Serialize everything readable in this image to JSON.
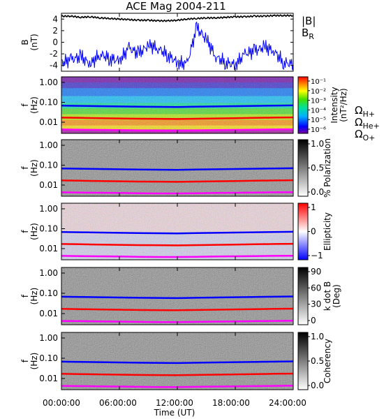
{
  "title": "ACE Mag 2004-211",
  "x_axis": {
    "label": "Time (UT)",
    "ticks": [
      "00:00:00",
      "06:00:00",
      "12:00:00",
      "18:00:00",
      "24:00:00"
    ],
    "range_hours": [
      0,
      24
    ]
  },
  "colors": {
    "btot": "#000000",
    "br": "#0000ff",
    "h_plus": "#0000ff",
    "he_plus": "#ff0000",
    "o_plus": "#ff00ff"
  },
  "chart_data": [
    {
      "type": "line",
      "ylabel": "B\n(nT)",
      "yticks": [
        "4",
        "2",
        "0",
        "-2",
        "-4"
      ],
      "ylim": [
        -5,
        5
      ],
      "x_hours": [
        0,
        1,
        2,
        3,
        4,
        5,
        6,
        7,
        8,
        9,
        10,
        11,
        12,
        13,
        14,
        15,
        16,
        17,
        18,
        19,
        20,
        21,
        22,
        23,
        24
      ],
      "series": [
        {
          "name": "|B|",
          "color": "#000000",
          "values": [
            4.5,
            4.5,
            4.3,
            4.4,
            4.2,
            4.1,
            4.0,
            3.9,
            3.8,
            3.8,
            3.7,
            3.7,
            3.8,
            4.0,
            4.1,
            4.2,
            4.2,
            4.3,
            4.4,
            4.4,
            4.5,
            4.5,
            4.6,
            4.6,
            4.6
          ]
        },
        {
          "name": "B_R",
          "color": "#0000ff",
          "values": [
            -3.5,
            -3.0,
            -2.5,
            -3.8,
            -2.0,
            -2.8,
            -3.2,
            -1.0,
            -2.0,
            -0.5,
            -1.0,
            -2.2,
            -3.5,
            -3.8,
            2.5,
            0.5,
            -2.5,
            -3.5,
            -3.9,
            -2.0,
            -1.5,
            -0.8,
            -1.5,
            -3.5,
            -3.8
          ]
        }
      ],
      "legend": [
        {
          "label_main": "|B|",
          "label_sub": "",
          "color": "#000000"
        },
        {
          "label_main": "B",
          "label_sub": "R",
          "color": "#0000ff"
        }
      ]
    },
    {
      "type": "heatmap",
      "ylabel": "f\n(Hz)",
      "yticks": [
        "1.00",
        "0.10",
        "0.01"
      ],
      "colorbar_label": "Intensity\n(nT²/Hz)",
      "colorbar_ticks": [
        "10⁻¹",
        "10⁻²",
        "10⁻³",
        "10⁻⁴",
        "10⁻⁵",
        "10⁻⁶"
      ],
      "colorbar_scheme": "rainbow",
      "legend": [
        {
          "label_main": "Ω",
          "label_sub": "H+",
          "color": "#0000ff"
        },
        {
          "label_main": "Ω",
          "label_sub": "He+",
          "color": "#ff0000"
        },
        {
          "label_main": "Ω",
          "label_sub": "O+",
          "color": "#ff00ff"
        }
      ]
    },
    {
      "type": "heatmap",
      "ylabel": "f\n(Hz)",
      "yticks": [
        "1.00",
        "0.10",
        "0.01"
      ],
      "colorbar_label": "% Polarization",
      "colorbar_ticks": [
        "1.0",
        "0.5",
        "0.0"
      ],
      "colorbar_scheme": "gray"
    },
    {
      "type": "heatmap",
      "ylabel": "f\n(Hz)",
      "yticks": [
        "1.00",
        "0.10",
        "0.01"
      ],
      "colorbar_label": "Ellipticity",
      "colorbar_ticks": [
        "1",
        "0",
        "−1"
      ],
      "colorbar_scheme": "bluered"
    },
    {
      "type": "heatmap",
      "ylabel": "f\n(Hz)",
      "yticks": [
        "1.00",
        "0.10",
        "0.01"
      ],
      "colorbar_label": "k dot B\n(Deg)",
      "colorbar_ticks": [
        "90",
        "60",
        "30",
        "0"
      ],
      "colorbar_scheme": "gray"
    },
    {
      "type": "heatmap",
      "ylabel": "f\n(Hz)",
      "yticks": [
        "1.00",
        "0.10",
        "0.01"
      ],
      "colorbar_label": "Coherency",
      "colorbar_ticks": [
        "1.0",
        "0.5",
        "0.0"
      ],
      "colorbar_scheme": "gray"
    }
  ],
  "gyrofrequency_lines_hz": {
    "x_hours": [
      0,
      2,
      4,
      6,
      8,
      10,
      12,
      14,
      16,
      18,
      20,
      22,
      24
    ],
    "h_plus": [
      0.068,
      0.066,
      0.064,
      0.062,
      0.06,
      0.059,
      0.058,
      0.06,
      0.062,
      0.064,
      0.066,
      0.068,
      0.07
    ],
    "he_plus": [
      0.017,
      0.0165,
      0.016,
      0.0155,
      0.015,
      0.0148,
      0.0145,
      0.015,
      0.0155,
      0.016,
      0.0165,
      0.017,
      0.0175
    ],
    "o_plus": [
      0.0043,
      0.0042,
      0.0041,
      0.004,
      0.0039,
      0.0038,
      0.0038,
      0.0039,
      0.004,
      0.0041,
      0.0042,
      0.0043,
      0.0044
    ]
  }
}
